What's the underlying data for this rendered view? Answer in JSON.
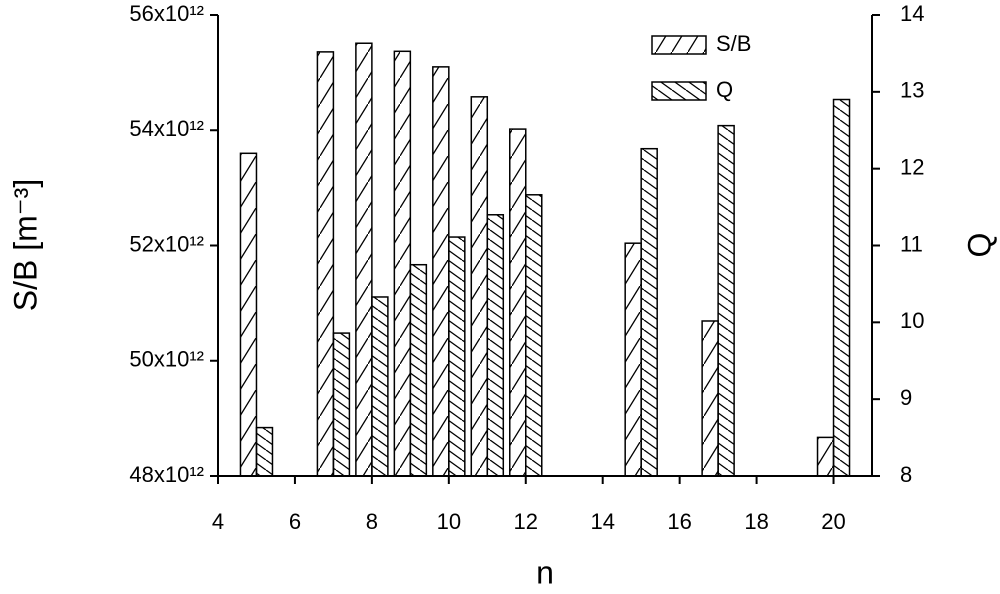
{
  "chart_data": {
    "type": "bar",
    "x": [
      5,
      7,
      8,
      9,
      10,
      11,
      12,
      15,
      17,
      20
    ],
    "series": [
      {
        "name": "S/B",
        "color": "#000000",
        "values": [
          53600000000000.0,
          55360000000000.0,
          55510000000000.0,
          55370000000000.0,
          55100000000000.0,
          54580000000000.0,
          54020000000000.0,
          52040000000000.0,
          50690000000000.0,
          48670000000000.0
        ]
      },
      {
        "name": "Q",
        "color": "#000000",
        "axis": "y2",
        "values": [
          8.63,
          9.86,
          10.33,
          10.75,
          11.11,
          11.4,
          11.66,
          12.26,
          12.56,
          12.9
        ]
      }
    ],
    "xlabel": "n",
    "ylabel": "S/B [m⁻³]",
    "y2label": "Q",
    "xlim": [
      4,
      21
    ],
    "xticks": [
      4,
      6,
      8,
      10,
      12,
      14,
      16,
      18,
      20
    ],
    "ylim": [
      48000000000000.0,
      56000000000000.0
    ],
    "yticks": [
      {
        "value": 48000000000000.0,
        "label": "48x10¹²"
      },
      {
        "value": 50000000000000.0,
        "label": "50x10¹²"
      },
      {
        "value": 52000000000000.0,
        "label": "52x10¹²"
      },
      {
        "value": 54000000000000.0,
        "label": "54x10¹²"
      },
      {
        "value": 56000000000000.0,
        "label": "56x10¹²"
      }
    ],
    "y2lim": [
      8,
      14
    ],
    "y2ticks": [
      8,
      9,
      10,
      11,
      12,
      13,
      14
    ],
    "legend": "upper right",
    "grid": false
  }
}
